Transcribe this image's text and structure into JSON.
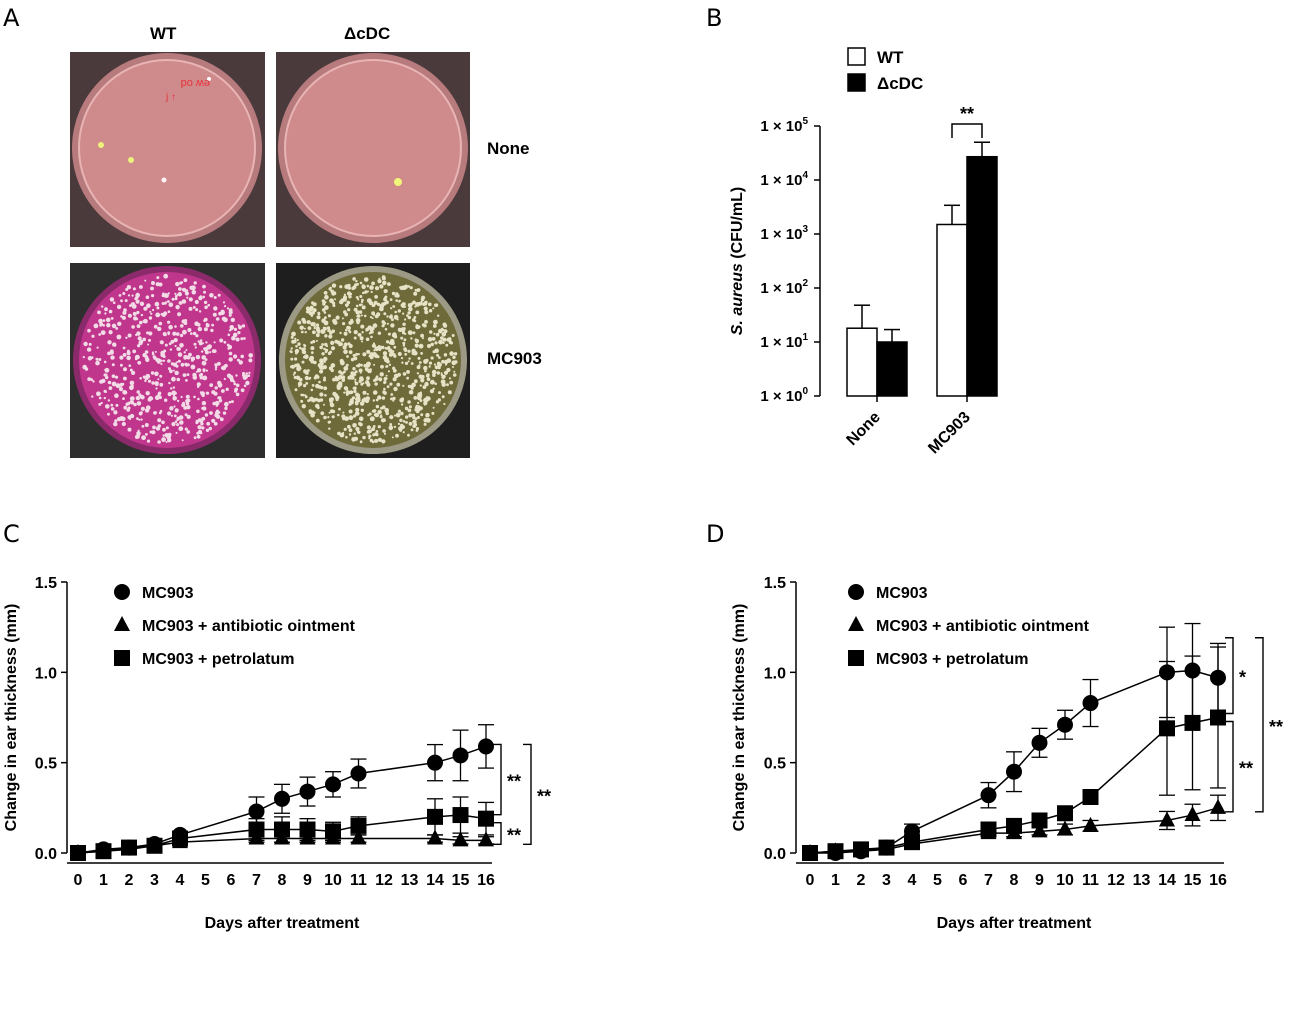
{
  "panels": {
    "A": "A",
    "B": "B",
    "C": "C",
    "D": "D"
  },
  "panel_a": {
    "col_labels": [
      "WT",
      "ΔcDC"
    ],
    "row_labels": [
      "None",
      "MC903"
    ],
    "plates": [
      {
        "id": "wt-none",
        "bg": "#4a3a3c",
        "agar": "#cf8a8c"
      },
      {
        "id": "dcdc-none",
        "bg": "#4a3a3c",
        "agar": "#cf8a8c"
      },
      {
        "id": "wt-mc903",
        "bg": "#2e2e2e",
        "agar": "#c0368c"
      },
      {
        "id": "dcdc-mc903",
        "bg": "#1e1e1e",
        "agar": "#6e6a3a"
      }
    ]
  },
  "chart_data": [
    {
      "panel": "B",
      "type": "bar",
      "categories": [
        "None",
        "MC903"
      ],
      "series": [
        {
          "name": "WT",
          "color": "#ffffff",
          "values": [
            18,
            1500
          ],
          "error_upper": [
            48,
            3400
          ]
        },
        {
          "name": "ΔcDC",
          "color": "#000000",
          "values": [
            10,
            27000
          ],
          "error_upper": [
            17,
            50000
          ]
        }
      ],
      "ylabel_italic": "S. aureus",
      "ylabel_rest": " (CFU/mL)",
      "yscale": "log",
      "ylim": [
        1,
        100000
      ],
      "ytick_labels": [
        {
          "base": "1 × 10",
          "exp": "0"
        },
        {
          "base": "1 × 10",
          "exp": "1"
        },
        {
          "base": "1 × 10",
          "exp": "2"
        },
        {
          "base": "1 × 10",
          "exp": "3"
        },
        {
          "base": "1 × 10",
          "exp": "4"
        },
        {
          "base": "1 × 10",
          "exp": "5"
        }
      ],
      "significance": [
        {
          "category": "MC903",
          "label": "**"
        }
      ],
      "legend_position": "top-left"
    },
    {
      "panel": "C",
      "type": "line",
      "x": [
        0,
        1,
        2,
        3,
        4,
        7,
        8,
        9,
        10,
        11,
        14,
        15,
        16
      ],
      "xticks": [
        0,
        1,
        2,
        3,
        4,
        5,
        6,
        7,
        8,
        9,
        10,
        11,
        12,
        13,
        14,
        15,
        16
      ],
      "xlabel": "Days after treatment",
      "ylabel": "Change in ear thickness (mm)",
      "ylim": [
        0,
        1.5
      ],
      "yticks": [
        "0.0",
        "0.5",
        "1.0",
        "1.5"
      ],
      "series": [
        {
          "name": "MC903",
          "marker": "circle",
          "values": [
            0.0,
            0.02,
            0.03,
            0.05,
            0.1,
            0.23,
            0.3,
            0.34,
            0.38,
            0.44,
            0.5,
            0.54,
            0.59
          ],
          "error": [
            0.01,
            0.01,
            0.01,
            0.02,
            0.02,
            0.08,
            0.08,
            0.08,
            0.07,
            0.08,
            0.1,
            0.14,
            0.12
          ]
        },
        {
          "name": "MC903 + antibiotic ointment",
          "marker": "triangle",
          "values": [
            0.0,
            0.01,
            0.02,
            0.04,
            0.06,
            0.08,
            0.08,
            0.08,
            0.08,
            0.08,
            0.08,
            0.07,
            0.07
          ],
          "error": [
            0.01,
            0.01,
            0.01,
            0.01,
            0.01,
            0.02,
            0.02,
            0.02,
            0.02,
            0.02,
            0.02,
            0.02,
            0.02
          ]
        },
        {
          "name": "MC903 + petrolatum",
          "marker": "square",
          "values": [
            0.0,
            0.01,
            0.03,
            0.04,
            0.08,
            0.13,
            0.13,
            0.13,
            0.12,
            0.15,
            0.2,
            0.21,
            0.19
          ],
          "error": [
            0.01,
            0.01,
            0.01,
            0.01,
            0.02,
            0.06,
            0.07,
            0.06,
            0.05,
            0.05,
            0.1,
            0.1,
            0.09
          ]
        }
      ],
      "significance": [
        {
          "between": [
            "MC903",
            "MC903 + petrolatum"
          ],
          "label": "**"
        },
        {
          "between": [
            "MC903 + petrolatum",
            "MC903 + antibiotic ointment"
          ],
          "label": "**"
        },
        {
          "between": [
            "MC903",
            "MC903 + antibiotic ointment"
          ],
          "label": "**"
        }
      ],
      "legend_position": "top-left"
    },
    {
      "panel": "D",
      "type": "line",
      "x": [
        0,
        1,
        2,
        3,
        4,
        7,
        8,
        9,
        10,
        11,
        14,
        15,
        16
      ],
      "xticks": [
        0,
        1,
        2,
        3,
        4,
        5,
        6,
        7,
        8,
        9,
        10,
        11,
        12,
        13,
        14,
        15,
        16
      ],
      "xlabel": "Days after treatment",
      "ylabel": "Change in ear thickness (mm)",
      "ylim": [
        0,
        1.5
      ],
      "yticks": [
        "0.0",
        "0.5",
        "1.0",
        "1.5"
      ],
      "series": [
        {
          "name": "MC903",
          "marker": "circle",
          "values": [
            0.0,
            0.0,
            0.01,
            0.03,
            0.12,
            0.32,
            0.45,
            0.61,
            0.71,
            0.83,
            1.0,
            1.01,
            0.97
          ],
          "error": [
            0.01,
            0.01,
            0.01,
            0.02,
            0.04,
            0.07,
            0.11,
            0.08,
            0.08,
            0.13,
            0.25,
            0.26,
            0.19
          ]
        },
        {
          "name": "MC903 + antibiotic ointment",
          "marker": "triangle",
          "values": [
            0.0,
            0.01,
            0.01,
            0.02,
            0.05,
            0.11,
            0.11,
            0.12,
            0.13,
            0.15,
            0.18,
            0.21,
            0.25
          ],
          "error": [
            0.01,
            0.01,
            0.01,
            0.01,
            0.01,
            0.02,
            0.02,
            0.02,
            0.03,
            0.03,
            0.05,
            0.06,
            0.07
          ]
        },
        {
          "name": "MC903 + petrolatum",
          "marker": "square",
          "values": [
            0.0,
            0.01,
            0.02,
            0.03,
            0.06,
            0.13,
            0.15,
            0.18,
            0.22,
            0.31,
            0.69,
            0.72,
            0.75
          ],
          "error": [
            0.01,
            0.01,
            0.01,
            0.01,
            0.01,
            0.03,
            0.03,
            0.03,
            0.03,
            0.03,
            0.37,
            0.37,
            0.39
          ]
        }
      ],
      "significance": [
        {
          "between": [
            "MC903",
            "MC903 + petrolatum"
          ],
          "label": "*"
        },
        {
          "between": [
            "MC903 + petrolatum",
            "MC903 + antibiotic ointment"
          ],
          "label": "**"
        },
        {
          "between": [
            "MC903",
            "MC903 + antibiotic ointment"
          ],
          "label": "**"
        }
      ],
      "legend_position": "top-left"
    }
  ]
}
